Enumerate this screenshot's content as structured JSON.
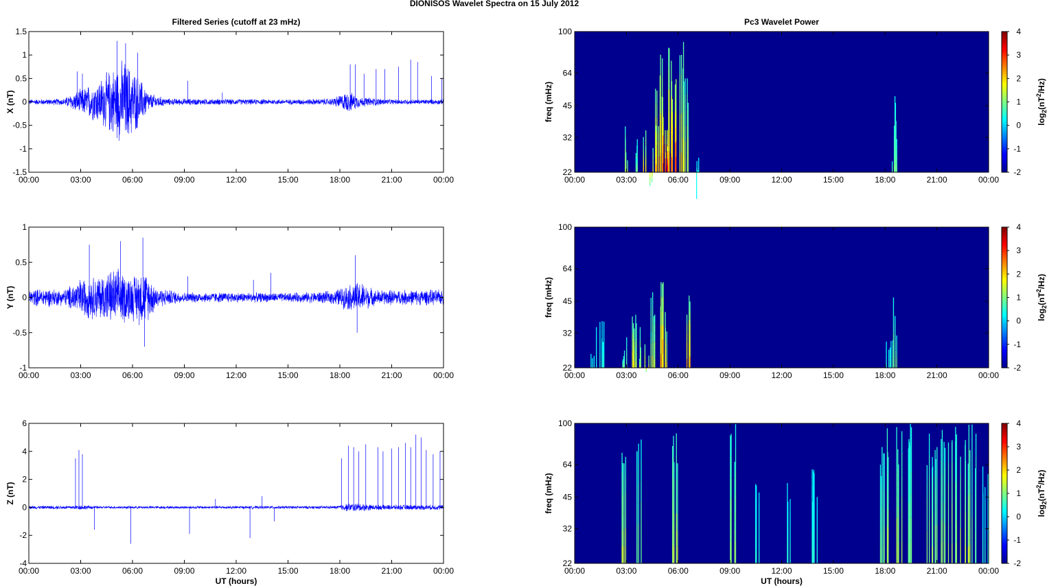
{
  "figure": {
    "title": "DIONISOS Wavelet Spectra on 15 July     2012",
    "left_title": "Filtered Series (cutoff at 23 mHz)",
    "right_title": "Pc3 Wavelet Power",
    "xlabel": "UT (hours)",
    "time_ticks": [
      "00:00",
      "03:00",
      "06:00",
      "09:00",
      "12:00",
      "15:00",
      "18:00",
      "21:00",
      "00:00"
    ],
    "colors": {
      "trace": "#0000ff",
      "spectrogram_background": "#00008f"
    }
  },
  "chart_data": [
    {
      "type": "line",
      "panel": "filtered-x",
      "ylabel": "X (nT)",
      "xlim": [
        0,
        24
      ],
      "ylim": [
        -1.5,
        1.5
      ],
      "yticks": [
        -1.5,
        -1,
        -0.5,
        0,
        0.5,
        1,
        1.5
      ],
      "ytick_labels": [
        "-1.5",
        "-1",
        "-0.5",
        "0",
        "0.5",
        "1",
        "1.5"
      ],
      "envelope": [
        [
          0,
          0.06
        ],
        [
          2,
          0.08
        ],
        [
          3,
          0.3
        ],
        [
          4,
          0.5
        ],
        [
          4.8,
          0.8
        ],
        [
          5.5,
          1.0
        ],
        [
          6.2,
          0.7
        ],
        [
          7,
          0.2
        ],
        [
          8,
          0.08
        ],
        [
          11,
          0.07
        ],
        [
          15,
          0.06
        ],
        [
          17.5,
          0.08
        ],
        [
          18.5,
          0.25
        ],
        [
          19.2,
          0.12
        ],
        [
          21,
          0.06
        ],
        [
          24,
          0.06
        ]
      ],
      "spikes": [
        [
          2.8,
          0.65
        ],
        [
          3.1,
          0.6
        ],
        [
          5.1,
          1.3
        ],
        [
          5.6,
          1.25
        ],
        [
          6.3,
          1.05
        ],
        [
          9.2,
          0.45
        ],
        [
          11.2,
          0.2
        ],
        [
          18.6,
          0.8
        ],
        [
          18.9,
          0.8
        ],
        [
          19.4,
          0.6
        ],
        [
          20.1,
          0.7
        ],
        [
          20.6,
          0.7
        ],
        [
          21.4,
          0.75
        ],
        [
          22.1,
          0.9
        ],
        [
          22.5,
          0.85
        ],
        [
          23.3,
          0.55
        ],
        [
          23.9,
          0.5
        ]
      ]
    },
    {
      "type": "line",
      "panel": "filtered-y",
      "ylabel": "Y (nT)",
      "xlim": [
        0,
        24
      ],
      "ylim": [
        -1,
        1
      ],
      "yticks": [
        -1,
        -0.5,
        0,
        0.5,
        1
      ],
      "ytick_labels": [
        "-1",
        "-0.5",
        "0",
        "0.5",
        "1"
      ],
      "envelope": [
        [
          0,
          0.12
        ],
        [
          1,
          0.15
        ],
        [
          2,
          0.12
        ],
        [
          3,
          0.3
        ],
        [
          4,
          0.35
        ],
        [
          5,
          0.45
        ],
        [
          6,
          0.35
        ],
        [
          6.6,
          0.45
        ],
        [
          7.5,
          0.15
        ],
        [
          9,
          0.08
        ],
        [
          12,
          0.08
        ],
        [
          15,
          0.07
        ],
        [
          17.5,
          0.1
        ],
        [
          18.5,
          0.2
        ],
        [
          19.2,
          0.25
        ],
        [
          20,
          0.12
        ],
        [
          24,
          0.12
        ]
      ],
      "spikes": [
        [
          3.5,
          0.75
        ],
        [
          5.3,
          0.8
        ],
        [
          6.6,
          0.85
        ],
        [
          6.7,
          -0.7
        ],
        [
          9.2,
          0.3
        ],
        [
          13.0,
          0.25
        ],
        [
          14.0,
          0.35
        ],
        [
          18.9,
          0.6
        ],
        [
          19.0,
          -0.5
        ]
      ]
    },
    {
      "type": "line",
      "panel": "filtered-z",
      "ylabel": "Z (nT)",
      "xlabel": "UT (hours)",
      "xlim": [
        0,
        24
      ],
      "ylim": [
        -4,
        6
      ],
      "yticks": [
        -4,
        -2,
        0,
        2,
        4,
        6
      ],
      "ytick_labels": [
        "-4",
        "-2",
        "0",
        "2",
        "4",
        "6"
      ],
      "envelope": [
        [
          0,
          0.12
        ],
        [
          2.5,
          0.15
        ],
        [
          3,
          0.2
        ],
        [
          4,
          0.1
        ],
        [
          17.8,
          0.12
        ],
        [
          18.3,
          0.3
        ],
        [
          19,
          0.35
        ],
        [
          20,
          0.2
        ],
        [
          24,
          0.2
        ]
      ],
      "spikes": [
        [
          2.7,
          3.5
        ],
        [
          2.9,
          4.1
        ],
        [
          3.1,
          3.8
        ],
        [
          3.8,
          -1.6
        ],
        [
          5.9,
          -2.6
        ],
        [
          9.3,
          -1.9
        ],
        [
          10.8,
          0.6
        ],
        [
          12.8,
          -2.2
        ],
        [
          13.5,
          0.8
        ],
        [
          14.2,
          -1.0
        ],
        [
          18.1,
          3.5
        ],
        [
          18.5,
          4.4
        ],
        [
          18.8,
          4.3
        ],
        [
          19.1,
          4.0
        ],
        [
          19.5,
          4.5
        ],
        [
          20.2,
          4.3
        ],
        [
          20.5,
          4.0
        ],
        [
          21.0,
          4.2
        ],
        [
          21.4,
          4.3
        ],
        [
          21.8,
          4.6
        ],
        [
          22.1,
          4.3
        ],
        [
          22.4,
          5.2
        ],
        [
          22.7,
          5.0
        ],
        [
          23.0,
          4.1
        ],
        [
          23.4,
          3.8
        ],
        [
          23.8,
          4.0
        ]
      ]
    },
    {
      "type": "heatmap",
      "panel": "wavelet-x",
      "ylabel": "freq (mHz)",
      "xlim": [
        0,
        24
      ],
      "ylim": [
        22,
        100
      ],
      "yscale": "log",
      "yticks": [
        22,
        32,
        45,
        64,
        100
      ],
      "colorbar": {
        "label": "log2(nT2/Hz)",
        "clim": [
          -2,
          4
        ],
        "ticks": [
          -2,
          -1,
          0,
          1,
          2,
          3,
          4
        ]
      },
      "bursts": [
        [
          3.1,
          40,
          1.5
        ],
        [
          3.6,
          35,
          1.0
        ],
        [
          4.0,
          45,
          2.0
        ],
        [
          4.5,
          30,
          2.0
        ],
        [
          4.8,
          55,
          2.5
        ],
        [
          5.0,
          80,
          2.5
        ],
        [
          5.3,
          40,
          3.8
        ],
        [
          5.5,
          100,
          2.5
        ],
        [
          5.8,
          60,
          3.0
        ],
        [
          6.2,
          100,
          2.0
        ],
        [
          6.5,
          70,
          1.5
        ],
        [
          7.2,
          26,
          0.5
        ],
        [
          18.5,
          40,
          1.0
        ],
        [
          18.7,
          55,
          1.0
        ]
      ]
    },
    {
      "type": "heatmap",
      "panel": "wavelet-y",
      "ylabel": "freq (mHz)",
      "xlim": [
        0,
        24
      ],
      "ylim": [
        22,
        100
      ],
      "yscale": "log",
      "yticks": [
        22,
        32,
        45,
        64,
        100
      ],
      "colorbar": {
        "label": "log2(nT2/Hz)",
        "clim": [
          -2,
          4
        ],
        "ticks": [
          -2,
          -1,
          0,
          1,
          2,
          3,
          4
        ]
      },
      "bursts": [
        [
          1.1,
          35,
          0.5
        ],
        [
          1.6,
          38,
          0.5
        ],
        [
          2.9,
          35,
          1.0
        ],
        [
          3.3,
          45,
          2.0
        ],
        [
          3.7,
          40,
          1.5
        ],
        [
          4.2,
          35,
          2.0
        ],
        [
          4.6,
          50,
          1.5
        ],
        [
          5.0,
          60,
          2.5
        ],
        [
          5.3,
          45,
          2.0
        ],
        [
          6.6,
          50,
          2.5
        ],
        [
          18.2,
          36,
          0.5
        ],
        [
          18.6,
          48,
          1.0
        ]
      ]
    },
    {
      "type": "heatmap",
      "panel": "wavelet-z",
      "ylabel": "freq (mHz)",
      "xlabel": "UT (hours)",
      "xlim": [
        0,
        24
      ],
      "ylim": [
        22,
        100
      ],
      "yscale": "log",
      "yticks": [
        22,
        32,
        45,
        64,
        100
      ],
      "colorbar": {
        "label": "log2(nT2/Hz)",
        "clim": [
          -2,
          4
        ],
        "ticks": [
          -2,
          -1,
          0,
          1,
          2,
          3,
          4
        ]
      },
      "bursts": [
        [
          2.9,
          100,
          1.5
        ],
        [
          3.7,
          100,
          1.0
        ],
        [
          5.8,
          100,
          1.5
        ],
        [
          9.2,
          100,
          1.2
        ],
        [
          10.6,
          55,
          0.5
        ],
        [
          12.5,
          60,
          0.5
        ],
        [
          13.9,
          65,
          0.5
        ],
        [
          17.8,
          80,
          1.0
        ],
        [
          18.3,
          100,
          1.5
        ],
        [
          18.8,
          100,
          1.5
        ],
        [
          19.5,
          100,
          1.0
        ],
        [
          20.6,
          100,
          1.2
        ],
        [
          21.0,
          100,
          1.2
        ],
        [
          21.4,
          100,
          1.2
        ],
        [
          21.8,
          100,
          1.5
        ],
        [
          22.2,
          100,
          1.2
        ],
        [
          22.5,
          100,
          1.5
        ],
        [
          22.9,
          100,
          1.5
        ],
        [
          23.2,
          100,
          1.0
        ],
        [
          23.8,
          65,
          0.5
        ]
      ]
    }
  ]
}
